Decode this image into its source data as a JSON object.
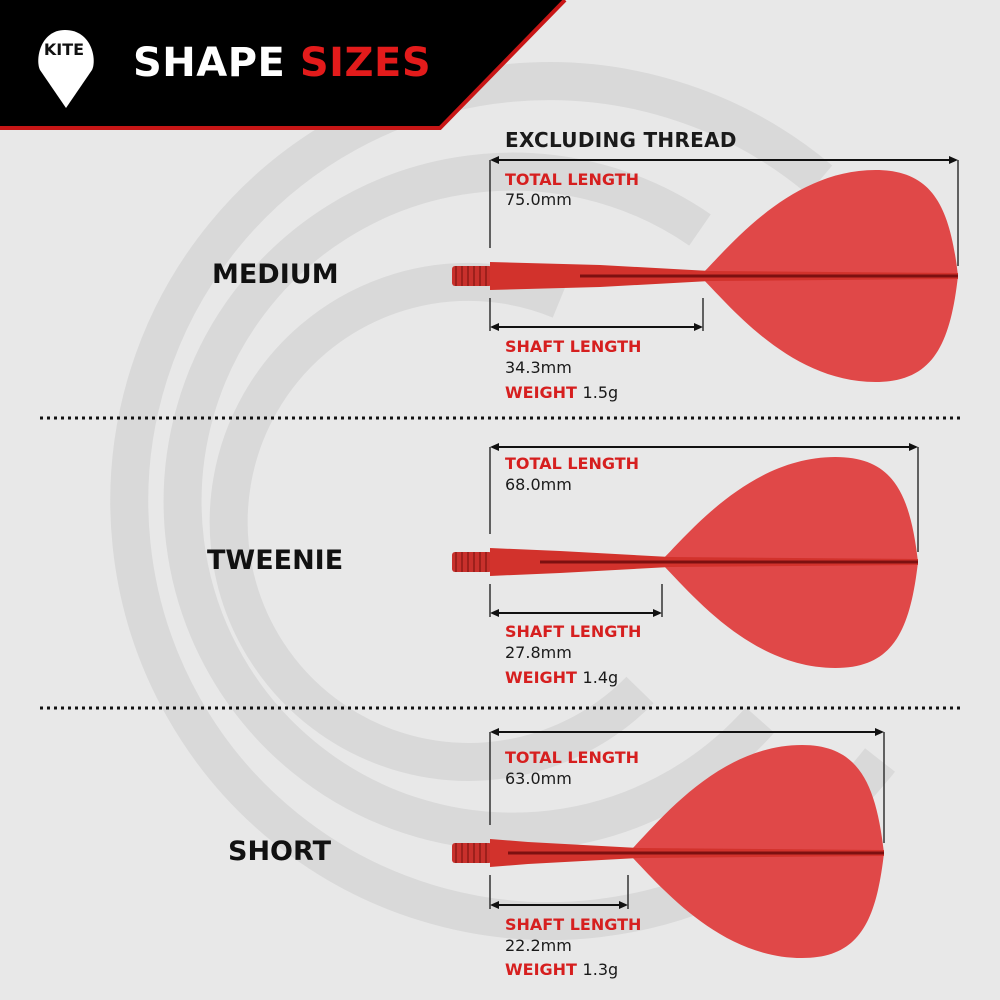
{
  "header": {
    "logo_text": "KITE",
    "title_white": "SHAPE",
    "title_red": "SIZES"
  },
  "note": "EXCLUDING THREAD",
  "colors": {
    "accent": "#e31b1b",
    "flight": "#e04848",
    "header_bg": "#000000",
    "background": "#e8e8e8"
  },
  "labels": {
    "total_length": "TOTAL LENGTH",
    "shaft_length": "SHAFT LENGTH",
    "weight": "WEIGHT"
  },
  "sizes": [
    {
      "name": "MEDIUM",
      "total_length": "75.0mm",
      "shaft_length": "34.3mm",
      "weight": "1.5g"
    },
    {
      "name": "TWEENIE",
      "total_length": "68.0mm",
      "shaft_length": "27.8mm",
      "weight": "1.4g"
    },
    {
      "name": "SHORT",
      "total_length": "63.0mm",
      "shaft_length": "22.2mm",
      "weight": "1.3g"
    }
  ]
}
